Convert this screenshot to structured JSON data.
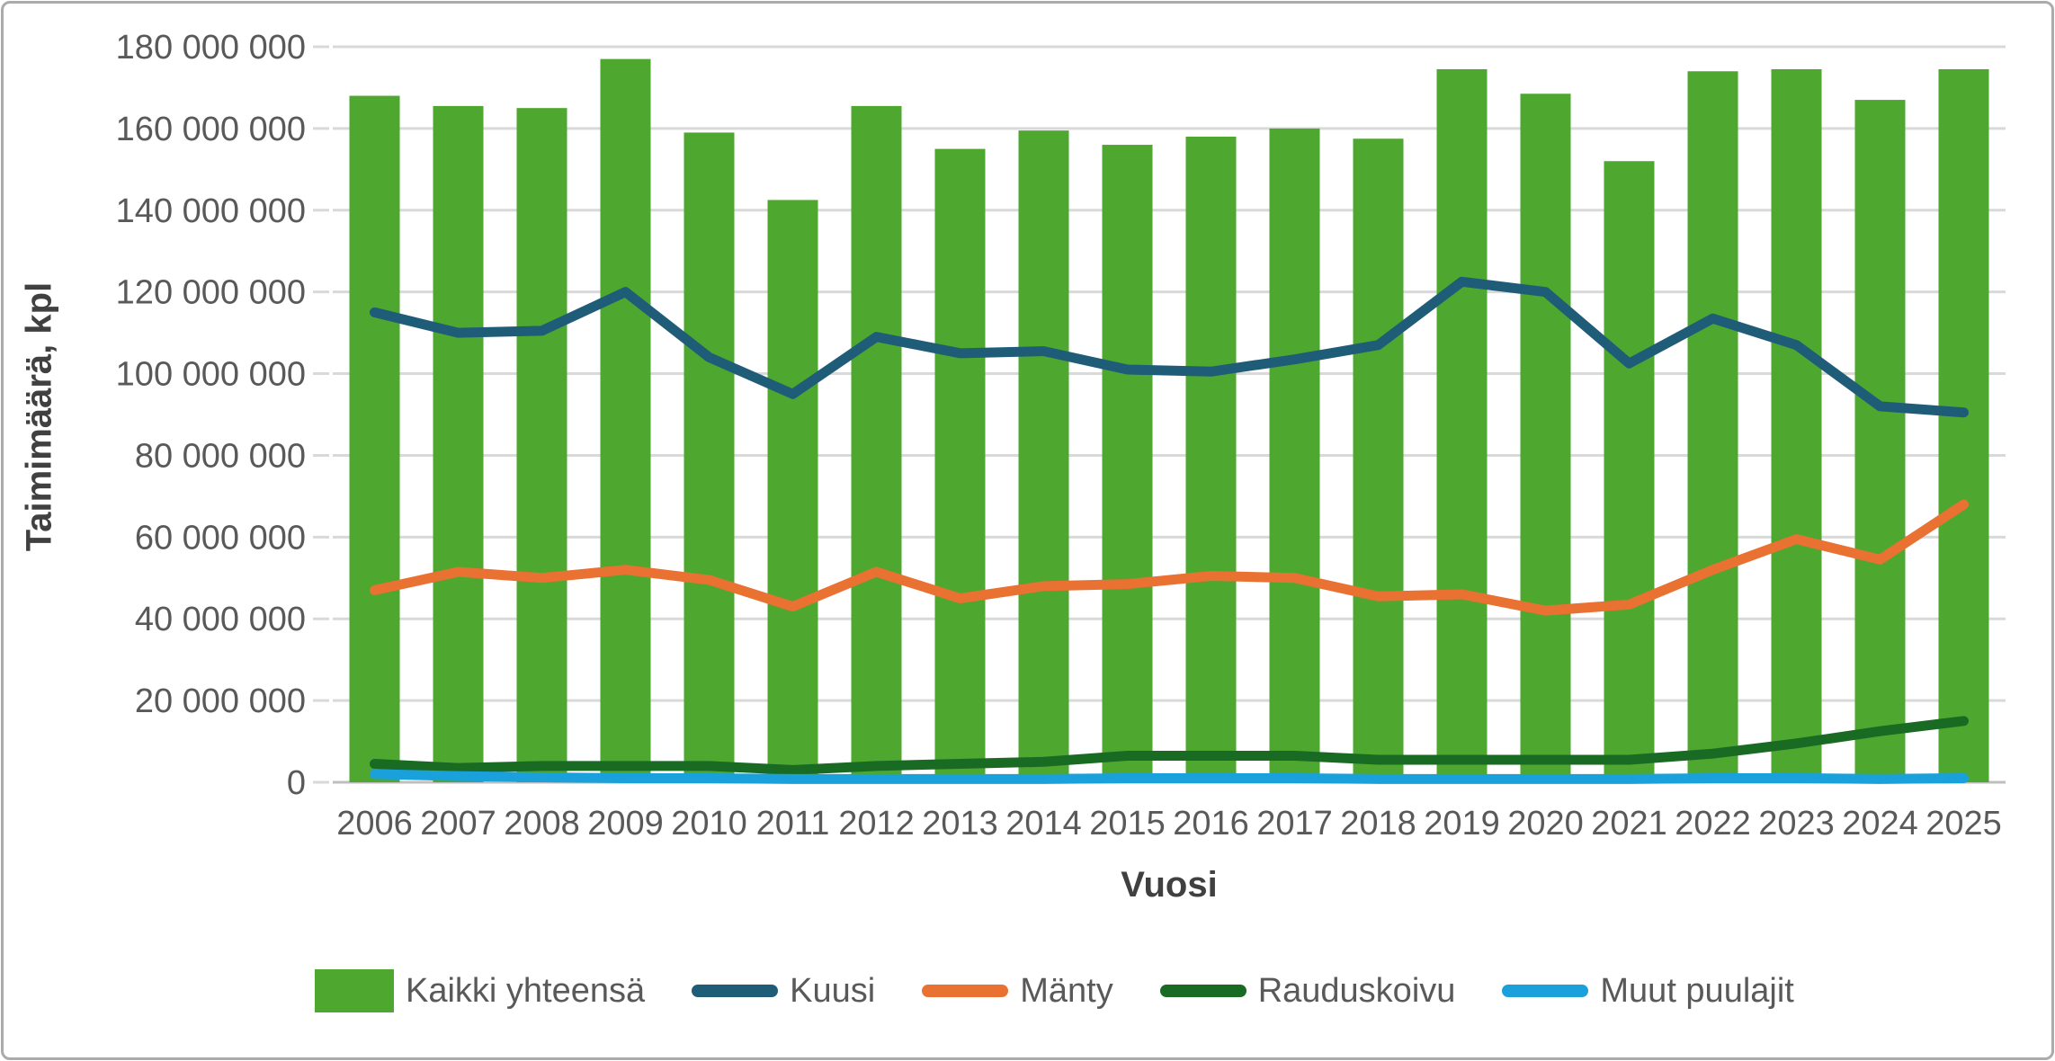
{
  "axes": {
    "y_title": "Taimimäärä, kpl",
    "x_title": "Vuosi"
  },
  "chart_data": {
    "type": "bar",
    "title": "",
    "xlabel": "Vuosi",
    "ylabel": "Taimimäärä, kpl",
    "categories": [
      "2006",
      "2007",
      "2008",
      "2009",
      "2010",
      "2011",
      "2012",
      "2013",
      "2014",
      "2015",
      "2016",
      "2017",
      "2018",
      "2019",
      "2020",
      "2021",
      "2022",
      "2023",
      "2024",
      "2025"
    ],
    "ylim": [
      0,
      180000000
    ],
    "ytick_step": 20000000,
    "ytick_labels": [
      "0",
      "20 000 000",
      "40 000 000",
      "60 000 000",
      "80 000 000",
      "100 000 000",
      "120 000 000",
      "140 000 000",
      "160 000 000",
      "180 000 000"
    ],
    "grid": true,
    "legend_position": "bottom",
    "colors": {
      "grid": "#d9d9d9",
      "baseline": "#bfbfbf",
      "tick_text": "#595959"
    },
    "series": [
      {
        "name": "Kaikki yhteensä",
        "type": "bar",
        "color": "#4EA72E",
        "values": [
          168000000,
          165500000,
          165000000,
          177000000,
          159000000,
          142500000,
          165500000,
          155000000,
          159500000,
          156000000,
          158000000,
          160000000,
          157500000,
          174500000,
          168500000,
          152000000,
          174000000,
          174500000,
          167000000,
          174500000
        ]
      },
      {
        "name": "Kuusi",
        "type": "line",
        "color": "#1F5C78",
        "values": [
          115000000,
          110000000,
          110500000,
          120000000,
          104000000,
          95000000,
          109000000,
          105000000,
          105500000,
          101000000,
          100500000,
          103500000,
          107000000,
          122500000,
          120000000,
          102500000,
          113500000,
          107000000,
          92000000,
          90500000
        ]
      },
      {
        "name": "Mänty",
        "type": "line",
        "color": "#E97132",
        "values": [
          47000000,
          51500000,
          50000000,
          52000000,
          49500000,
          43000000,
          51500000,
          45000000,
          48000000,
          48500000,
          50500000,
          50000000,
          45500000,
          46000000,
          42000000,
          43500000,
          52000000,
          59500000,
          54500000,
          68000000
        ]
      },
      {
        "name": "Rauduskoivu",
        "type": "line",
        "color": "#196B24",
        "values": [
          4500000,
          3500000,
          4000000,
          4000000,
          4000000,
          3000000,
          4000000,
          4500000,
          5000000,
          6500000,
          6500000,
          6500000,
          5500000,
          5500000,
          5500000,
          5500000,
          7000000,
          9500000,
          12500000,
          15000000
        ]
      },
      {
        "name": "Muut puulajit",
        "type": "line",
        "color": "#1AA0DA",
        "values": [
          2000000,
          1500000,
          1200000,
          1000000,
          1000000,
          800000,
          800000,
          800000,
          800000,
          1000000,
          1000000,
          1000000,
          800000,
          800000,
          800000,
          800000,
          1000000,
          1000000,
          800000,
          1000000
        ]
      }
    ]
  }
}
